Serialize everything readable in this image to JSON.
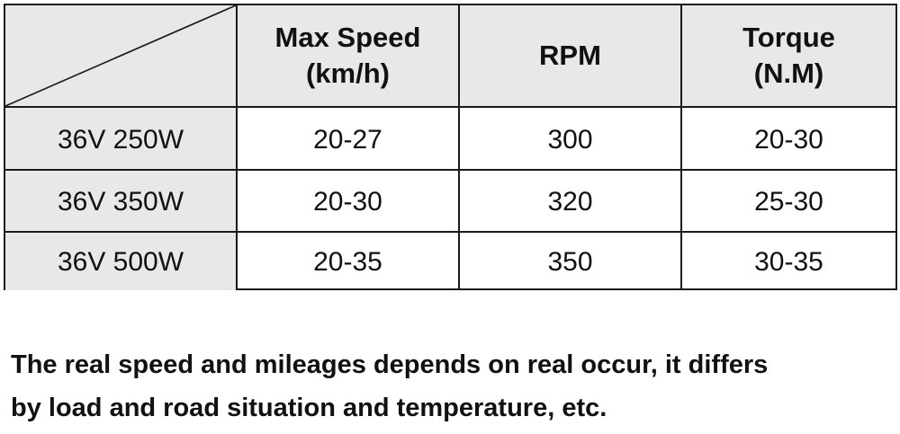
{
  "table": {
    "headers": [
      "",
      "Max Speed\n(km/h)",
      "RPM",
      "Torque\n(N.M)"
    ],
    "rows": [
      {
        "model": "36V 250W",
        "max_speed": "20-27",
        "rpm": "300",
        "torque": "20-30"
      },
      {
        "model": "36V 350W",
        "max_speed": "20-30",
        "rpm": "320",
        "torque": "25-30"
      },
      {
        "model": "36V 500W",
        "max_speed": "20-35",
        "rpm": "350",
        "torque": "30-35"
      }
    ]
  },
  "note": {
    "line1": "The real speed and mileages depends on real occur, it differs",
    "line2": "by load and road situation and temperature, etc."
  }
}
